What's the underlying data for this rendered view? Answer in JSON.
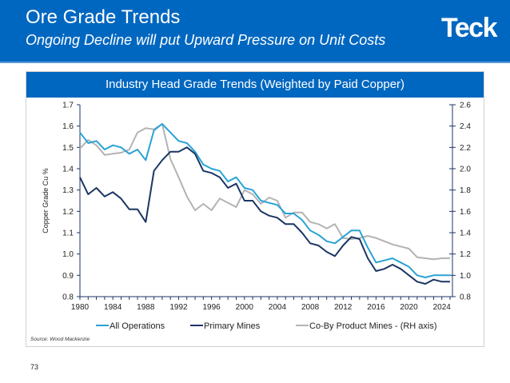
{
  "header": {
    "title": "Ore Grade Trends",
    "subtitle": "Ongoing Decline will put Upward Pressure on Unit Costs",
    "logo_text": "Teck",
    "background_color": "#0067c0"
  },
  "panel": {
    "title": "Industry Head Grade Trends (Weighted by Paid Copper)"
  },
  "source": "Source: Wood Mackenzie",
  "page_number": "73",
  "chart_data": {
    "type": "line",
    "title": "Industry Head Grade Trends (Weighted by Paid Copper)",
    "xlabel": "",
    "ylabel": "Copper Grade Cu %",
    "y2label": "",
    "xlim": [
      1980,
      2025
    ],
    "ylim": [
      0.8,
      1.7
    ],
    "y2lim": [
      0.8,
      2.6
    ],
    "xticks": [
      "1980",
      "1984",
      "1988",
      "1992",
      "1996",
      "2000",
      "2004",
      "2008",
      "2012",
      "2016",
      "2020",
      "2024"
    ],
    "yticks": [
      "0.8",
      "0.9",
      "1.0",
      "1.1",
      "1.2",
      "1.3",
      "1.4",
      "1.5",
      "1.6",
      "1.7"
    ],
    "y2ticks": [
      "0.8",
      "1.0",
      "1.2",
      "1.4",
      "1.6",
      "1.8",
      "2.0",
      "2.2",
      "2.4",
      "2.6"
    ],
    "grid": false,
    "legend_position": "bottom",
    "x": [
      1980,
      1981,
      1982,
      1983,
      1984,
      1985,
      1986,
      1987,
      1988,
      1989,
      1990,
      1991,
      1992,
      1993,
      1994,
      1995,
      1996,
      1997,
      1998,
      1999,
      2000,
      2001,
      2002,
      2003,
      2004,
      2005,
      2006,
      2007,
      2008,
      2009,
      2010,
      2011,
      2012,
      2013,
      2014,
      2015,
      2016,
      2017,
      2018,
      2019,
      2020,
      2021,
      2022,
      2023,
      2024,
      2025
    ],
    "series": [
      {
        "name": "All Operations",
        "axis": "left",
        "color": "#29a3d6",
        "values": [
          1.57,
          1.52,
          1.53,
          1.49,
          1.51,
          1.5,
          1.47,
          1.49,
          1.44,
          1.58,
          1.61,
          1.57,
          1.53,
          1.52,
          1.48,
          1.42,
          1.4,
          1.39,
          1.34,
          1.36,
          1.31,
          1.3,
          1.25,
          1.24,
          1.23,
          1.19,
          1.19,
          1.16,
          1.11,
          1.09,
          1.06,
          1.05,
          1.08,
          1.11,
          1.11,
          1.03,
          0.96,
          0.97,
          0.98,
          0.96,
          0.94,
          0.9,
          0.89,
          0.9,
          0.9,
          0.9
        ]
      },
      {
        "name": "Primary Mines",
        "axis": "left",
        "color": "#1b3564",
        "values": [
          1.36,
          1.28,
          1.31,
          1.27,
          1.29,
          1.26,
          1.21,
          1.21,
          1.15,
          1.39,
          1.44,
          1.48,
          1.48,
          1.5,
          1.47,
          1.39,
          1.38,
          1.36,
          1.31,
          1.33,
          1.25,
          1.25,
          1.2,
          1.18,
          1.17,
          1.14,
          1.14,
          1.1,
          1.05,
          1.04,
          1.01,
          0.99,
          1.04,
          1.08,
          1.07,
          0.98,
          0.92,
          0.93,
          0.95,
          0.93,
          0.9,
          0.87,
          0.86,
          0.88,
          0.87,
          0.87
        ]
      },
      {
        "name": "Co-By Product Mines - (RH axis)",
        "axis": "right",
        "color": "#b3b3b3",
        "values": [
          2.19,
          2.27,
          2.22,
          2.13,
          2.14,
          2.15,
          2.18,
          2.34,
          2.38,
          2.37,
          2.42,
          2.09,
          1.92,
          1.74,
          1.61,
          1.67,
          1.61,
          1.72,
          1.68,
          1.64,
          1.8,
          1.76,
          1.67,
          1.73,
          1.7,
          1.54,
          1.59,
          1.59,
          1.5,
          1.48,
          1.44,
          1.48,
          1.35,
          1.34,
          1.35,
          1.37,
          1.35,
          1.32,
          1.29,
          1.27,
          1.25,
          1.17,
          1.16,
          1.15,
          1.16,
          1.16
        ]
      }
    ]
  }
}
